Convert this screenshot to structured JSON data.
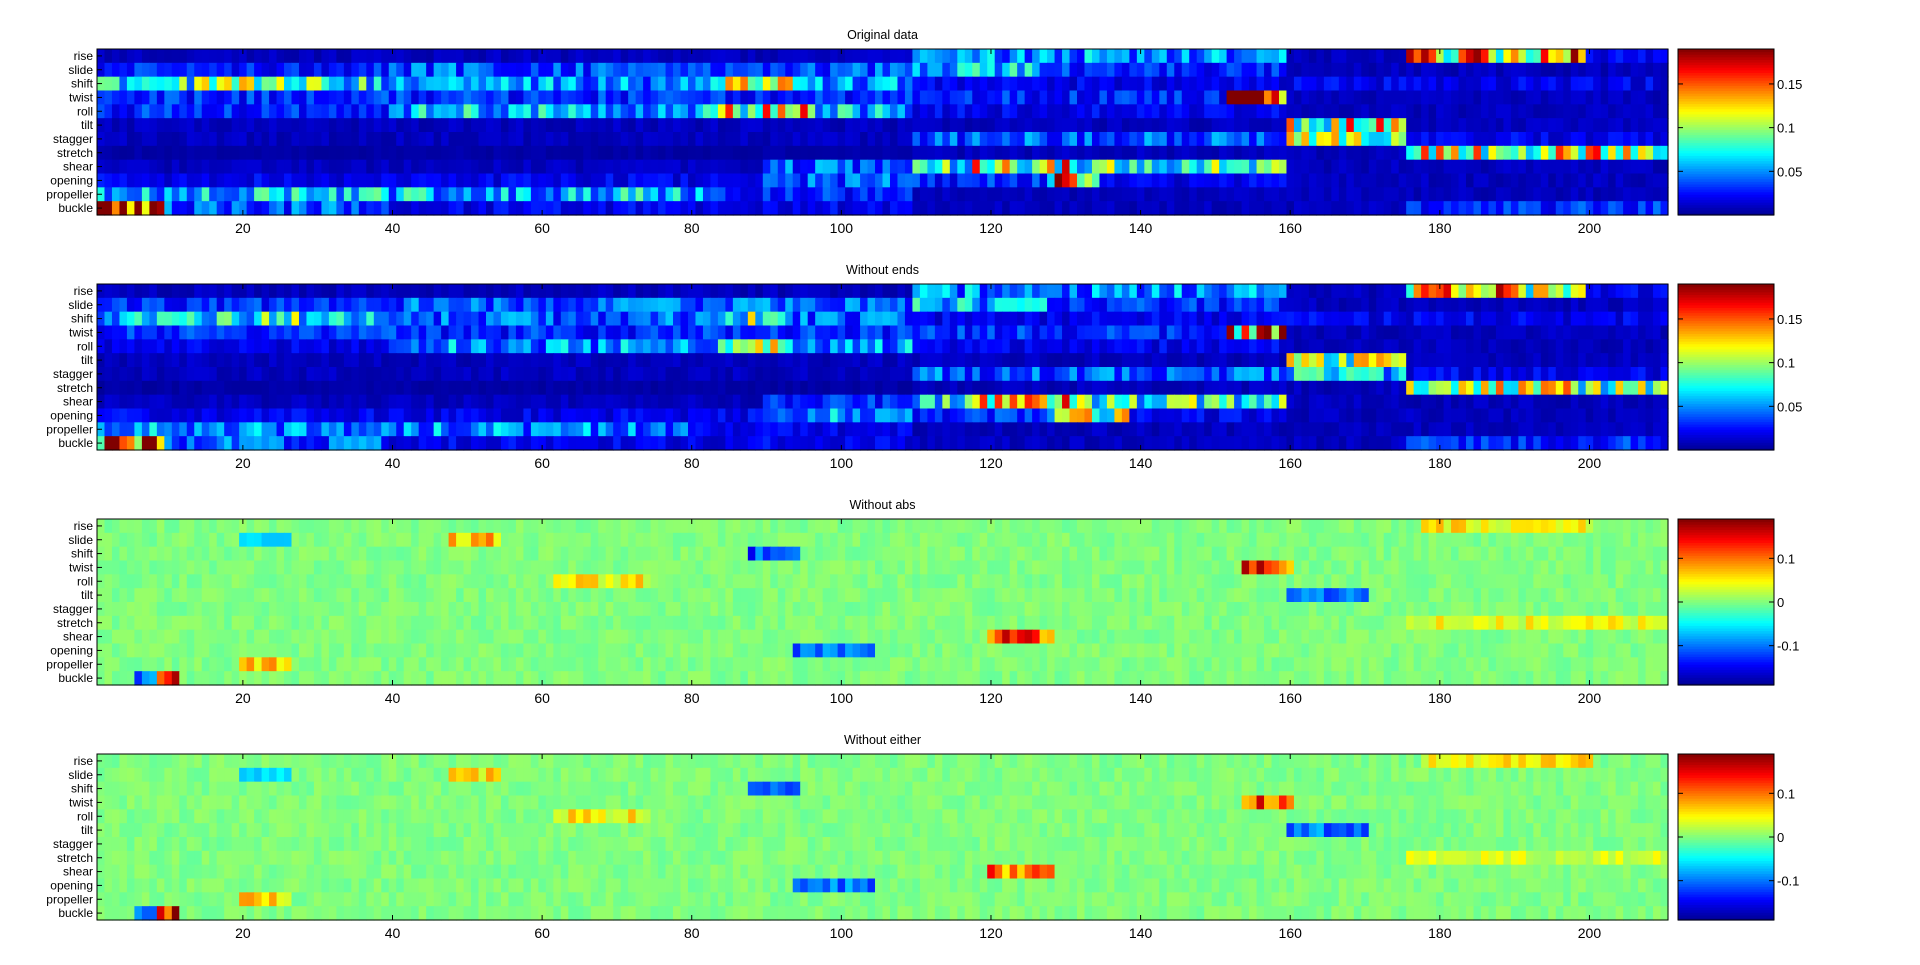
{
  "figure": {
    "colormap": "jet",
    "colormap_stops": [
      "#00008f",
      "#0000ff",
      "#00ffff",
      "#ffff00",
      "#ff0000",
      "#800000"
    ]
  },
  "chart_data": [
    {
      "type": "heatmap",
      "title": "Original data",
      "rows": [
        "rise",
        "slide",
        "shift",
        "twist",
        "roll",
        "tilt",
        "stagger",
        "stretch",
        "shear",
        "opening",
        "propeller",
        "buckle"
      ],
      "x_range": [
        1,
        210
      ],
      "xticks": [
        "20",
        "40",
        "60",
        "80",
        "100",
        "120",
        "140",
        "160",
        "180",
        "200"
      ],
      "xtick_values": [
        20,
        40,
        60,
        80,
        100,
        120,
        140,
        160,
        180,
        200
      ],
      "clim": [
        0,
        0.19
      ],
      "colorbar_ticks": [
        "0.05",
        "0.1",
        "0.15"
      ],
      "colorbar_tick_values": [
        0.05,
        0.1,
        0.15
      ],
      "segments": [
        [
          [
            1,
            40,
            0.01
          ],
          [
            110,
            160,
            0.05
          ],
          [
            160,
            176,
            0.01
          ],
          [
            176,
            200,
            0.13
          ],
          [
            200,
            210,
            0.02
          ]
        ],
        [
          [
            1,
            40,
            0.03
          ],
          [
            40,
            110,
            0.04
          ],
          [
            110,
            128,
            0.06
          ],
          [
            128,
            160,
            0.03
          ],
          [
            160,
            210,
            0.01
          ]
        ],
        [
          [
            1,
            40,
            0.07
          ],
          [
            12,
            30,
            0.09
          ],
          [
            40,
            110,
            0.05
          ],
          [
            85,
            93,
            0.1
          ],
          [
            110,
            160,
            0.02
          ],
          [
            160,
            176,
            0.02
          ],
          [
            176,
            210,
            0.02
          ]
        ],
        [
          [
            1,
            110,
            0.03
          ],
          [
            110,
            160,
            0.03
          ],
          [
            152,
            160,
            0.16
          ],
          [
            160,
            210,
            0.01
          ]
        ],
        [
          [
            1,
            40,
            0.03
          ],
          [
            40,
            110,
            0.06
          ],
          [
            84,
            96,
            0.12
          ],
          [
            110,
            160,
            0.02
          ],
          [
            160,
            210,
            0.01
          ]
        ],
        [
          [
            1,
            110,
            0.01
          ],
          [
            110,
            160,
            0.01
          ],
          [
            160,
            176,
            0.11
          ],
          [
            176,
            210,
            0.01
          ]
        ],
        [
          [
            1,
            110,
            0.01
          ],
          [
            110,
            160,
            0.04
          ],
          [
            160,
            176,
            0.1
          ],
          [
            176,
            210,
            0.02
          ]
        ],
        [
          [
            1,
            110,
            0.005
          ],
          [
            110,
            176,
            0.01
          ],
          [
            176,
            210,
            0.11
          ]
        ],
        [
          [
            1,
            90,
            0.01
          ],
          [
            90,
            110,
            0.04
          ],
          [
            110,
            160,
            0.08
          ],
          [
            118,
            130,
            0.12
          ],
          [
            160,
            210,
            0.01
          ]
        ],
        [
          [
            1,
            90,
            0.02
          ],
          [
            90,
            110,
            0.04
          ],
          [
            110,
            140,
            0.03
          ],
          [
            128,
            134,
            0.14
          ],
          [
            140,
            160,
            0.02
          ],
          [
            160,
            210,
            0.01
          ]
        ],
        [
          [
            1,
            82,
            0.06
          ],
          [
            82,
            110,
            0.03
          ],
          [
            110,
            160,
            0.01
          ],
          [
            160,
            210,
            0.01
          ]
        ],
        [
          [
            1,
            10,
            0.17
          ],
          [
            10,
            40,
            0.04
          ],
          [
            40,
            110,
            0.02
          ],
          [
            110,
            176,
            0.01
          ],
          [
            176,
            210,
            0.03
          ]
        ]
      ]
    },
    {
      "type": "heatmap",
      "title": "Without ends",
      "rows": [
        "rise",
        "slide",
        "shift",
        "twist",
        "roll",
        "tilt",
        "stagger",
        "stretch",
        "shear",
        "opening",
        "propeller",
        "buckle"
      ],
      "x_range": [
        1,
        210
      ],
      "xticks": [
        "20",
        "40",
        "60",
        "80",
        "100",
        "120",
        "140",
        "160",
        "180",
        "200"
      ],
      "xtick_values": [
        20,
        40,
        60,
        80,
        100,
        120,
        140,
        160,
        180,
        200
      ],
      "clim": [
        0,
        0.19
      ],
      "colorbar_ticks": [
        "0.05",
        "0.1",
        "0.15"
      ],
      "colorbar_tick_values": [
        0.05,
        0.1,
        0.15
      ],
      "segments": [
        [
          [
            1,
            40,
            0.01
          ],
          [
            110,
            160,
            0.05
          ],
          [
            160,
            176,
            0.01
          ],
          [
            176,
            200,
            0.12
          ],
          [
            200,
            210,
            0.02
          ]
        ],
        [
          [
            1,
            40,
            0.03
          ],
          [
            40,
            110,
            0.04
          ],
          [
            110,
            128,
            0.06
          ],
          [
            128,
            160,
            0.03
          ],
          [
            160,
            210,
            0.01
          ]
        ],
        [
          [
            1,
            40,
            0.06
          ],
          [
            14,
            30,
            0.08
          ],
          [
            40,
            110,
            0.04
          ],
          [
            85,
            93,
            0.09
          ],
          [
            110,
            160,
            0.02
          ],
          [
            160,
            210,
            0.02
          ]
        ],
        [
          [
            1,
            110,
            0.03
          ],
          [
            110,
            160,
            0.03
          ],
          [
            152,
            160,
            0.15
          ],
          [
            160,
            210,
            0.01
          ]
        ],
        [
          [
            1,
            40,
            0.02
          ],
          [
            40,
            110,
            0.05
          ],
          [
            84,
            92,
            0.1
          ],
          [
            110,
            160,
            0.02
          ],
          [
            160,
            210,
            0.01
          ]
        ],
        [
          [
            1,
            110,
            0.01
          ],
          [
            110,
            160,
            0.01
          ],
          [
            160,
            176,
            0.09
          ],
          [
            176,
            210,
            0.01
          ]
        ],
        [
          [
            1,
            110,
            0.01
          ],
          [
            110,
            160,
            0.04
          ],
          [
            160,
            176,
            0.06
          ],
          [
            176,
            210,
            0.02
          ]
        ],
        [
          [
            1,
            110,
            0.005
          ],
          [
            110,
            176,
            0.01
          ],
          [
            176,
            210,
            0.1
          ]
        ],
        [
          [
            1,
            90,
            0.01
          ],
          [
            90,
            110,
            0.03
          ],
          [
            110,
            160,
            0.08
          ],
          [
            118,
            130,
            0.12
          ],
          [
            160,
            210,
            0.01
          ]
        ],
        [
          [
            1,
            90,
            0.02
          ],
          [
            90,
            110,
            0.05
          ],
          [
            110,
            140,
            0.03
          ],
          [
            128,
            138,
            0.1
          ],
          [
            140,
            160,
            0.02
          ],
          [
            160,
            210,
            0.01
          ]
        ],
        [
          [
            1,
            82,
            0.05
          ],
          [
            82,
            110,
            0.02
          ],
          [
            110,
            160,
            0.01
          ],
          [
            160,
            210,
            0.01
          ]
        ],
        [
          [
            1,
            10,
            0.16
          ],
          [
            10,
            40,
            0.04
          ],
          [
            40,
            110,
            0.02
          ],
          [
            110,
            176,
            0.01
          ],
          [
            176,
            210,
            0.03
          ]
        ]
      ]
    },
    {
      "type": "heatmap",
      "title": "Without abs",
      "rows": [
        "rise",
        "slide",
        "shift",
        "twist",
        "roll",
        "tilt",
        "stagger",
        "stretch",
        "shear",
        "opening",
        "propeller",
        "buckle"
      ],
      "x_range": [
        1,
        210
      ],
      "xticks": [
        "20",
        "40",
        "60",
        "80",
        "100",
        "120",
        "140",
        "160",
        "180",
        "200"
      ],
      "xtick_values": [
        20,
        40,
        60,
        80,
        100,
        120,
        140,
        160,
        180,
        200
      ],
      "clim": [
        -0.19,
        0.19
      ],
      "colorbar_ticks": [
        "-0.1",
        "0",
        "0.1"
      ],
      "colorbar_tick_values": [
        -0.1,
        0,
        0.1
      ],
      "segments": [
        [
          [
            1,
            210,
            0.0
          ],
          [
            178,
            200,
            0.05
          ]
        ],
        [
          [
            1,
            210,
            0.0
          ],
          [
            20,
            26,
            -0.06
          ],
          [
            48,
            54,
            0.07
          ]
        ],
        [
          [
            1,
            210,
            0.0
          ],
          [
            88,
            94,
            -0.12
          ]
        ],
        [
          [
            1,
            210,
            0.0
          ],
          [
            154,
            160,
            0.12
          ]
        ],
        [
          [
            1,
            210,
            0.0
          ],
          [
            62,
            74,
            0.05
          ]
        ],
        [
          [
            1,
            210,
            0.0
          ],
          [
            160,
            170,
            -0.1
          ]
        ],
        [
          [
            1,
            210,
            0.0
          ]
        ],
        [
          [
            1,
            210,
            0.0
          ],
          [
            176,
            210,
            0.04
          ]
        ],
        [
          [
            1,
            210,
            0.0
          ],
          [
            120,
            128,
            0.12
          ]
        ],
        [
          [
            1,
            210,
            0.0
          ],
          [
            94,
            104,
            -0.1
          ]
        ],
        [
          [
            1,
            210,
            0.0
          ],
          [
            20,
            26,
            0.07
          ]
        ],
        [
          [
            1,
            210,
            0.0
          ],
          [
            6,
            10,
            -0.1
          ],
          [
            9,
            11,
            0.17
          ]
        ]
      ]
    },
    {
      "type": "heatmap",
      "title": "Without either",
      "rows": [
        "rise",
        "slide",
        "shift",
        "twist",
        "roll",
        "tilt",
        "stagger",
        "stretch",
        "shear",
        "opening",
        "propeller",
        "buckle"
      ],
      "x_range": [
        1,
        210
      ],
      "xticks": [
        "20",
        "40",
        "60",
        "80",
        "100",
        "120",
        "140",
        "160",
        "180",
        "200"
      ],
      "xtick_values": [
        20,
        40,
        60,
        80,
        100,
        120,
        140,
        160,
        180,
        200
      ],
      "clim": [
        -0.19,
        0.19
      ],
      "colorbar_ticks": [
        "-0.1",
        "0",
        "0.1"
      ],
      "colorbar_tick_values": [
        -0.1,
        0,
        0.1
      ],
      "segments": [
        [
          [
            1,
            210,
            0.0
          ],
          [
            178,
            200,
            0.05
          ]
        ],
        [
          [
            1,
            210,
            0.0
          ],
          [
            20,
            26,
            -0.06
          ],
          [
            48,
            54,
            0.06
          ]
        ],
        [
          [
            1,
            210,
            0.0
          ],
          [
            88,
            94,
            -0.11
          ]
        ],
        [
          [
            1,
            210,
            0.0
          ],
          [
            154,
            160,
            0.11
          ]
        ],
        [
          [
            1,
            210,
            0.0
          ],
          [
            62,
            74,
            0.05
          ]
        ],
        [
          [
            1,
            210,
            0.0
          ],
          [
            160,
            170,
            -0.1
          ]
        ],
        [
          [
            1,
            210,
            0.0
          ]
        ],
        [
          [
            1,
            210,
            0.0
          ],
          [
            176,
            210,
            0.03
          ]
        ],
        [
          [
            1,
            210,
            0.0
          ],
          [
            120,
            128,
            0.1
          ]
        ],
        [
          [
            1,
            210,
            0.0
          ],
          [
            94,
            104,
            -0.1
          ]
        ],
        [
          [
            1,
            210,
            0.0
          ],
          [
            20,
            26,
            0.06
          ]
        ],
        [
          [
            1,
            210,
            0.0
          ],
          [
            6,
            10,
            -0.09
          ],
          [
            9,
            11,
            0.16
          ]
        ]
      ]
    }
  ]
}
